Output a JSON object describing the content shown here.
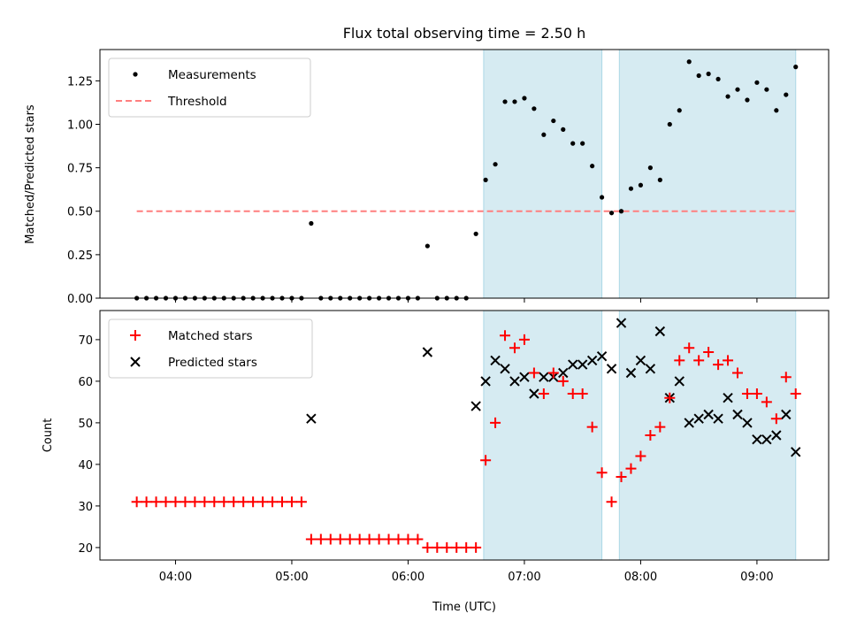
{
  "figure": {
    "title": "Flux total observing time = 2.50 h",
    "xlabel": "Time (UTC)",
    "x_tick_labels": [
      "04:00",
      "05:00",
      "06:00",
      "07:00",
      "08:00",
      "09:00"
    ]
  },
  "colors": {
    "measurement": "#000000",
    "threshold": "#ff7f7f",
    "span_fill": "#add8e6",
    "matched": "#ff0000",
    "predicted": "#000000"
  },
  "chart_data": [
    {
      "type": "scatter",
      "ylabel": "Matched/Predicted stars",
      "ylim": [
        0,
        1.43
      ],
      "yticks": [
        "0.00",
        "0.25",
        "0.50",
        "0.75",
        "1.00",
        "1.25"
      ],
      "xlim": [
        "03:21",
        "09:37"
      ],
      "legend_placement": "top-left",
      "shaded_intervals": [
        [
          "06:39",
          "07:40"
        ],
        [
          "07:49",
          "09:20"
        ]
      ],
      "threshold": {
        "name": "Threshold",
        "value": 0.5,
        "x_range": [
          "03:40",
          "09:20"
        ]
      },
      "series": [
        {
          "name": "Measurements",
          "marker": "dot",
          "points": [
            [
              "03:40",
              0
            ],
            [
              "03:45",
              0
            ],
            [
              "03:50",
              0
            ],
            [
              "03:55",
              0
            ],
            [
              "04:00",
              0
            ],
            [
              "04:05",
              0
            ],
            [
              "04:10",
              0
            ],
            [
              "04:15",
              0
            ],
            [
              "04:20",
              0
            ],
            [
              "04:25",
              0
            ],
            [
              "04:30",
              0
            ],
            [
              "04:35",
              0
            ],
            [
              "04:40",
              0
            ],
            [
              "04:45",
              0
            ],
            [
              "04:50",
              0
            ],
            [
              "04:55",
              0
            ],
            [
              "05:00",
              0
            ],
            [
              "05:05",
              0
            ],
            [
              "05:10",
              0.43
            ],
            [
              "05:15",
              0
            ],
            [
              "05:20",
              0
            ],
            [
              "05:25",
              0
            ],
            [
              "05:30",
              0
            ],
            [
              "05:35",
              0
            ],
            [
              "05:40",
              0
            ],
            [
              "05:45",
              0
            ],
            [
              "05:50",
              0
            ],
            [
              "05:55",
              0
            ],
            [
              "06:00",
              0
            ],
            [
              "06:05",
              0
            ],
            [
              "06:10",
              0.3
            ],
            [
              "06:15",
              0
            ],
            [
              "06:20",
              0
            ],
            [
              "06:25",
              0
            ],
            [
              "06:30",
              0
            ],
            [
              "06:35",
              0.37
            ],
            [
              "06:40",
              0.68
            ],
            [
              "06:45",
              0.77
            ],
            [
              "06:50",
              1.13
            ],
            [
              "06:55",
              1.13
            ],
            [
              "07:00",
              1.15
            ],
            [
              "07:05",
              1.09
            ],
            [
              "07:10",
              0.94
            ],
            [
              "07:15",
              1.02
            ],
            [
              "07:20",
              0.97
            ],
            [
              "07:25",
              0.89
            ],
            [
              "07:30",
              0.89
            ],
            [
              "07:35",
              0.76
            ],
            [
              "07:40",
              0.58
            ],
            [
              "07:45",
              0.49
            ],
            [
              "07:50",
              0.5
            ],
            [
              "07:55",
              0.63
            ],
            [
              "08:00",
              0.65
            ],
            [
              "08:05",
              0.75
            ],
            [
              "08:10",
              0.68
            ],
            [
              "08:15",
              1.0
            ],
            [
              "08:20",
              1.08
            ],
            [
              "08:25",
              1.36
            ],
            [
              "08:30",
              1.28
            ],
            [
              "08:35",
              1.29
            ],
            [
              "08:40",
              1.26
            ],
            [
              "08:45",
              1.16
            ],
            [
              "08:50",
              1.2
            ],
            [
              "08:55",
              1.14
            ],
            [
              "09:00",
              1.24
            ],
            [
              "09:05",
              1.2
            ],
            [
              "09:10",
              1.08
            ],
            [
              "09:15",
              1.17
            ],
            [
              "09:20",
              1.33
            ]
          ]
        }
      ]
    },
    {
      "type": "scatter",
      "ylabel": "Count",
      "ylim": [
        17,
        77
      ],
      "yticks": [
        "20",
        "30",
        "40",
        "50",
        "60",
        "70"
      ],
      "xlim": [
        "03:21",
        "09:37"
      ],
      "legend_placement": "top-left",
      "shaded_intervals": [
        [
          "06:39",
          "07:40"
        ],
        [
          "07:49",
          "09:20"
        ]
      ],
      "series": [
        {
          "name": "Matched stars",
          "marker": "plus",
          "points": [
            [
              "03:40",
              31
            ],
            [
              "03:45",
              31
            ],
            [
              "03:50",
              31
            ],
            [
              "03:55",
              31
            ],
            [
              "04:00",
              31
            ],
            [
              "04:05",
              31
            ],
            [
              "04:10",
              31
            ],
            [
              "04:15",
              31
            ],
            [
              "04:20",
              31
            ],
            [
              "04:25",
              31
            ],
            [
              "04:30",
              31
            ],
            [
              "04:35",
              31
            ],
            [
              "04:40",
              31
            ],
            [
              "04:45",
              31
            ],
            [
              "04:50",
              31
            ],
            [
              "04:55",
              31
            ],
            [
              "05:00",
              31
            ],
            [
              "05:05",
              31
            ],
            [
              "05:10",
              22
            ],
            [
              "05:15",
              22
            ],
            [
              "05:20",
              22
            ],
            [
              "05:25",
              22
            ],
            [
              "05:30",
              22
            ],
            [
              "05:35",
              22
            ],
            [
              "05:40",
              22
            ],
            [
              "05:45",
              22
            ],
            [
              "05:50",
              22
            ],
            [
              "05:55",
              22
            ],
            [
              "06:00",
              22
            ],
            [
              "06:05",
              22
            ],
            [
              "06:10",
              20
            ],
            [
              "06:15",
              20
            ],
            [
              "06:20",
              20
            ],
            [
              "06:25",
              20
            ],
            [
              "06:30",
              20
            ],
            [
              "06:35",
              20
            ],
            [
              "06:40",
              41
            ],
            [
              "06:45",
              50
            ],
            [
              "06:50",
              71
            ],
            [
              "06:55",
              68
            ],
            [
              "07:00",
              70
            ],
            [
              "07:05",
              62
            ],
            [
              "07:10",
              57
            ],
            [
              "07:15",
              62
            ],
            [
              "07:20",
              60
            ],
            [
              "07:25",
              57
            ],
            [
              "07:30",
              57
            ],
            [
              "07:35",
              49
            ],
            [
              "07:40",
              38
            ],
            [
              "07:45",
              31
            ],
            [
              "07:50",
              37
            ],
            [
              "07:55",
              39
            ],
            [
              "08:00",
              42
            ],
            [
              "08:05",
              47
            ],
            [
              "08:10",
              49
            ],
            [
              "08:15",
              56
            ],
            [
              "08:20",
              65
            ],
            [
              "08:25",
              68
            ],
            [
              "08:30",
              65
            ],
            [
              "08:35",
              67
            ],
            [
              "08:40",
              64
            ],
            [
              "08:45",
              65
            ],
            [
              "08:50",
              62
            ],
            [
              "08:55",
              57
            ],
            [
              "09:00",
              57
            ],
            [
              "09:05",
              55
            ],
            [
              "09:10",
              51
            ],
            [
              "09:15",
              61
            ],
            [
              "09:20",
              57
            ]
          ]
        },
        {
          "name": "Predicted stars",
          "marker": "x",
          "points": [
            [
              "05:10",
              51
            ],
            [
              "06:10",
              67
            ],
            [
              "06:35",
              54
            ],
            [
              "06:40",
              60
            ],
            [
              "06:45",
              65
            ],
            [
              "06:50",
              63
            ],
            [
              "06:55",
              60
            ],
            [
              "07:00",
              61
            ],
            [
              "07:05",
              57
            ],
            [
              "07:10",
              61
            ],
            [
              "07:15",
              61
            ],
            [
              "07:20",
              62
            ],
            [
              "07:25",
              64
            ],
            [
              "07:30",
              64
            ],
            [
              "07:35",
              65
            ],
            [
              "07:40",
              66
            ],
            [
              "07:45",
              63
            ],
            [
              "07:50",
              74
            ],
            [
              "07:55",
              62
            ],
            [
              "08:00",
              65
            ],
            [
              "08:05",
              63
            ],
            [
              "08:10",
              72
            ],
            [
              "08:15",
              56
            ],
            [
              "08:20",
              60
            ],
            [
              "08:25",
              50
            ],
            [
              "08:30",
              51
            ],
            [
              "08:35",
              52
            ],
            [
              "08:40",
              51
            ],
            [
              "08:45",
              56
            ],
            [
              "08:50",
              52
            ],
            [
              "08:55",
              50
            ],
            [
              "09:00",
              46
            ],
            [
              "09:05",
              46
            ],
            [
              "09:10",
              47
            ],
            [
              "09:15",
              52
            ],
            [
              "09:20",
              43
            ]
          ]
        }
      ]
    }
  ]
}
